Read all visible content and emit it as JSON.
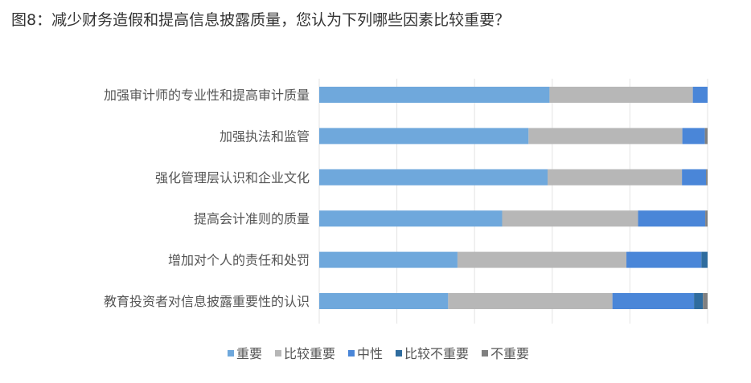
{
  "page": {
    "title": "图8：减少财务造假和提高信息披露质量，您认为下列哪些因素比较重要？"
  },
  "chart_data": {
    "type": "bar",
    "orientation": "horizontal",
    "stacked": "percent",
    "xlim": [
      0,
      100
    ],
    "grid": "vertical",
    "legend_position": "bottom",
    "categories": [
      "加强审计师的专业性和提高审计质量",
      "加强执法和监管",
      "强化管理层认识和企业文化",
      "提高会计准则的质量",
      "增加对个人的责任和处罚",
      "教育投资者对信息披露重要性的认识"
    ],
    "series": [
      {
        "name": "重要",
        "color": "#6FA8DC",
        "values": [
          59.3,
          53.9,
          58.8,
          47.1,
          35.6,
          33.2
        ]
      },
      {
        "name": "比较重要",
        "color": "#B7B7B7",
        "values": [
          36.9,
          39.6,
          34.6,
          35.0,
          43.5,
          42.3
        ]
      },
      {
        "name": "中性",
        "color": "#4A86D8",
        "values": [
          3.8,
          5.8,
          6.2,
          17.3,
          19.3,
          21.0
        ]
      },
      {
        "name": "比较不重要",
        "color": "#2F6C9E",
        "values": [
          0,
          0,
          0,
          0,
          1.6,
          2.3
        ]
      },
      {
        "name": "不重要",
        "color": "#808080",
        "values": [
          0,
          0.7,
          0.4,
          0.6,
          0,
          1.2
        ]
      }
    ]
  }
}
